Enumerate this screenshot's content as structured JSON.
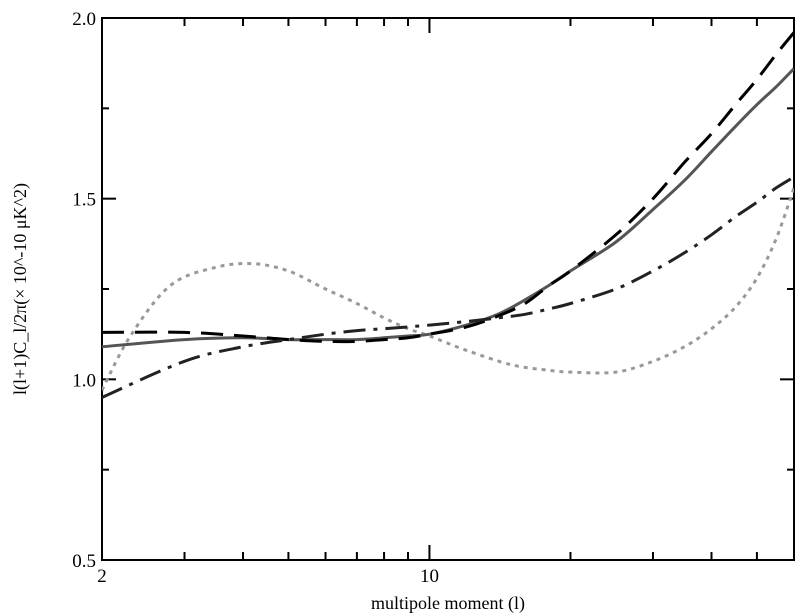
{
  "chart_data": {
    "type": "line",
    "xscale": "log",
    "xlim": [
      2,
      60
    ],
    "ylim": [
      0.5,
      2.0
    ],
    "xlabel": "multipole moment (l)",
    "ylabel": "l(l+1)C_l/2π(× 10^-10 μK^2)",
    "x_ticks": [
      {
        "value": 2,
        "label": "2"
      },
      {
        "value": 10,
        "label": "10"
      }
    ],
    "y_ticks": [
      {
        "value": 0.5,
        "label": "0.5"
      },
      {
        "value": 1.0,
        "label": "1.0"
      },
      {
        "value": 1.5,
        "label": "1.5"
      },
      {
        "value": 2.0,
        "label": "2.0"
      }
    ],
    "grid": false,
    "series": [
      {
        "style": "dotted",
        "color": "#999999",
        "x": [
          2,
          2.3,
          2.8,
          3.5,
          4.2,
          5,
          6,
          7,
          8,
          9,
          10,
          12,
          15,
          18,
          20,
          25,
          30,
          35,
          40,
          45,
          50,
          55,
          60
        ],
        "y": [
          0.97,
          1.12,
          1.26,
          1.31,
          1.32,
          1.3,
          1.25,
          1.21,
          1.17,
          1.14,
          1.12,
          1.08,
          1.04,
          1.025,
          1.02,
          1.02,
          1.05,
          1.09,
          1.14,
          1.2,
          1.28,
          1.39,
          1.53
        ]
      },
      {
        "style": "solid",
        "color": "#555555",
        "x": [
          2,
          3,
          4,
          5,
          6,
          7,
          8,
          9,
          10,
          12,
          14,
          16,
          18,
          20,
          25,
          30,
          35,
          40,
          45,
          50,
          55,
          60
        ],
        "y": [
          1.09,
          1.11,
          1.115,
          1.11,
          1.11,
          1.11,
          1.115,
          1.12,
          1.125,
          1.15,
          1.18,
          1.22,
          1.26,
          1.3,
          1.38,
          1.47,
          1.55,
          1.63,
          1.7,
          1.76,
          1.81,
          1.86
        ]
      },
      {
        "style": "dashed",
        "color": "#000000",
        "x": [
          2,
          3,
          4,
          5,
          6,
          7,
          8,
          9,
          10,
          12,
          14,
          16,
          18,
          20,
          25,
          30,
          35,
          40,
          45,
          50,
          55,
          60
        ],
        "y": [
          1.13,
          1.13,
          1.12,
          1.11,
          1.105,
          1.105,
          1.11,
          1.115,
          1.125,
          1.145,
          1.175,
          1.21,
          1.26,
          1.3,
          1.4,
          1.5,
          1.6,
          1.68,
          1.76,
          1.83,
          1.9,
          1.96
        ]
      },
      {
        "style": "dash-dot",
        "color": "#222222",
        "x": [
          2,
          3,
          4,
          5,
          6,
          7,
          8,
          9,
          10,
          12,
          14,
          16,
          18,
          20,
          25,
          30,
          35,
          40,
          45,
          50,
          55,
          60
        ],
        "y": [
          0.95,
          1.05,
          1.09,
          1.11,
          1.125,
          1.135,
          1.14,
          1.145,
          1.15,
          1.16,
          1.17,
          1.18,
          1.195,
          1.21,
          1.25,
          1.3,
          1.35,
          1.4,
          1.45,
          1.49,
          1.53,
          1.56
        ]
      }
    ]
  }
}
